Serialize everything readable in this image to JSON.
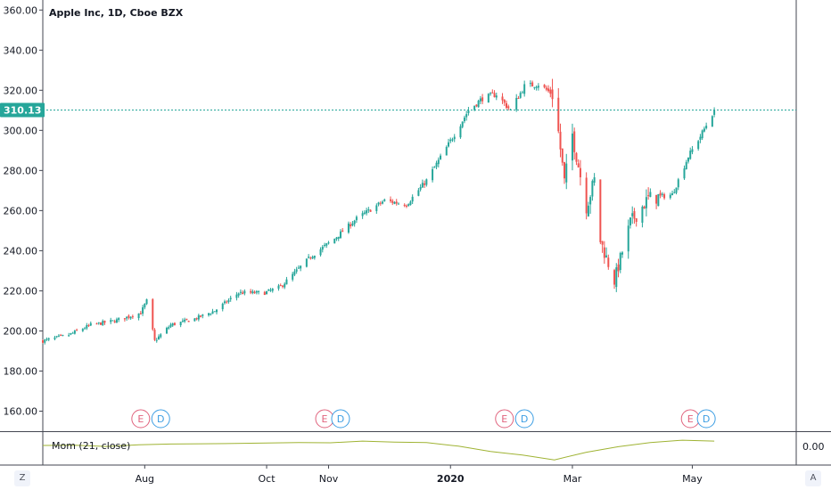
{
  "title": "Apple Inc, 1D, Cboe BZX",
  "price_tag": "310.13",
  "indicator_label": "Mom (21, close)",
  "indicator_value": "0.00",
  "corner_buttons": {
    "left": "Z",
    "right": "A"
  },
  "colors": {
    "up": "#26a69a",
    "down": "#ef5350",
    "last_price": "#26a69a",
    "indicator": "#9fb333",
    "earnings": "#e0637d",
    "dividend": "#3d9ee3"
  },
  "events": [
    {
      "date": "2019-07-30",
      "type": "earnings",
      "label": "E"
    },
    {
      "date": "2019-08-09",
      "type": "dividend",
      "label": "D"
    },
    {
      "date": "2019-10-30",
      "type": "earnings",
      "label": "E"
    },
    {
      "date": "2019-11-07",
      "type": "dividend",
      "label": "D"
    },
    {
      "date": "2020-01-28",
      "type": "earnings",
      "label": "E"
    },
    {
      "date": "2020-02-07",
      "type": "dividend",
      "label": "D"
    },
    {
      "date": "2020-04-30",
      "type": "earnings",
      "label": "E"
    },
    {
      "date": "2020-05-08",
      "type": "dividend",
      "label": "D"
    }
  ],
  "chart_data": {
    "type": "candlestick",
    "title": "Apple Inc, 1D, Cboe BZX",
    "x_range": [
      "2019-06-11",
      "2020-06-22"
    ],
    "ylim": [
      150,
      365
    ],
    "y_ticks": [
      160,
      180,
      200,
      220,
      240,
      260,
      280,
      300,
      320,
      340,
      360
    ],
    "x_ticks": [
      {
        "date": "2019-08-01",
        "label": "Aug",
        "bold": false
      },
      {
        "date": "2019-10-01",
        "label": "Oct",
        "bold": false
      },
      {
        "date": "2019-11-01",
        "label": "Nov",
        "bold": false
      },
      {
        "date": "2020-01-01",
        "label": "2020",
        "bold": true
      },
      {
        "date": "2020-03-02",
        "label": "Mar",
        "bold": false
      },
      {
        "date": "2020-05-01",
        "label": "May",
        "bold": false
      }
    ],
    "last_price": 310.13,
    "grid": false,
    "anchors": [
      [
        "2019-06-11",
        195
      ],
      [
        "2019-06-24",
        198
      ],
      [
        "2019-07-05",
        203
      ],
      [
        "2019-07-17",
        205
      ],
      [
        "2019-07-30",
        209
      ],
      [
        "2019-08-02",
        215
      ],
      [
        "2019-08-06",
        195
      ],
      [
        "2019-08-14",
        203
      ],
      [
        "2019-08-26",
        206
      ],
      [
        "2019-09-05",
        210
      ],
      [
        "2019-09-17",
        219
      ],
      [
        "2019-09-30",
        219
      ],
      [
        "2019-10-08",
        222
      ],
      [
        "2019-10-23",
        237
      ],
      [
        "2019-11-04",
        246
      ],
      [
        "2019-11-15",
        256
      ],
      [
        "2019-11-29",
        265
      ],
      [
        "2019-12-10",
        263
      ],
      [
        "2019-12-20",
        275
      ],
      [
        "2019-12-31",
        293
      ],
      [
        "2020-01-10",
        310
      ],
      [
        "2020-01-17",
        316
      ],
      [
        "2020-01-24",
        318
      ],
      [
        "2020-01-31",
        310
      ],
      [
        "2020-02-07",
        322
      ],
      [
        "2020-02-14",
        323
      ],
      [
        "2020-02-21",
        318
      ],
      [
        "2020-02-24",
        299
      ],
      [
        "2020-02-27",
        274
      ],
      [
        "2020-03-02",
        298
      ],
      [
        "2020-03-09",
        262
      ],
      [
        "2020-03-13",
        275
      ],
      [
        "2020-03-16",
        245
      ],
      [
        "2020-03-23",
        225
      ],
      [
        "2020-03-31",
        254
      ],
      [
        "2020-04-09",
        266
      ],
      [
        "2020-04-21",
        268
      ],
      [
        "2020-04-29",
        287
      ],
      [
        "2020-05-05",
        297
      ],
      [
        "2020-05-12",
        310.13
      ]
    ],
    "momentum": {
      "name": "Mom (21, close)",
      "values": [
        0,
        1,
        -4,
        3,
        6,
        7,
        8,
        10,
        12,
        11,
        18,
        14,
        12,
        -3,
        -25,
        -40,
        -60,
        -28,
        -5,
        12,
        22,
        18
      ]
    }
  }
}
